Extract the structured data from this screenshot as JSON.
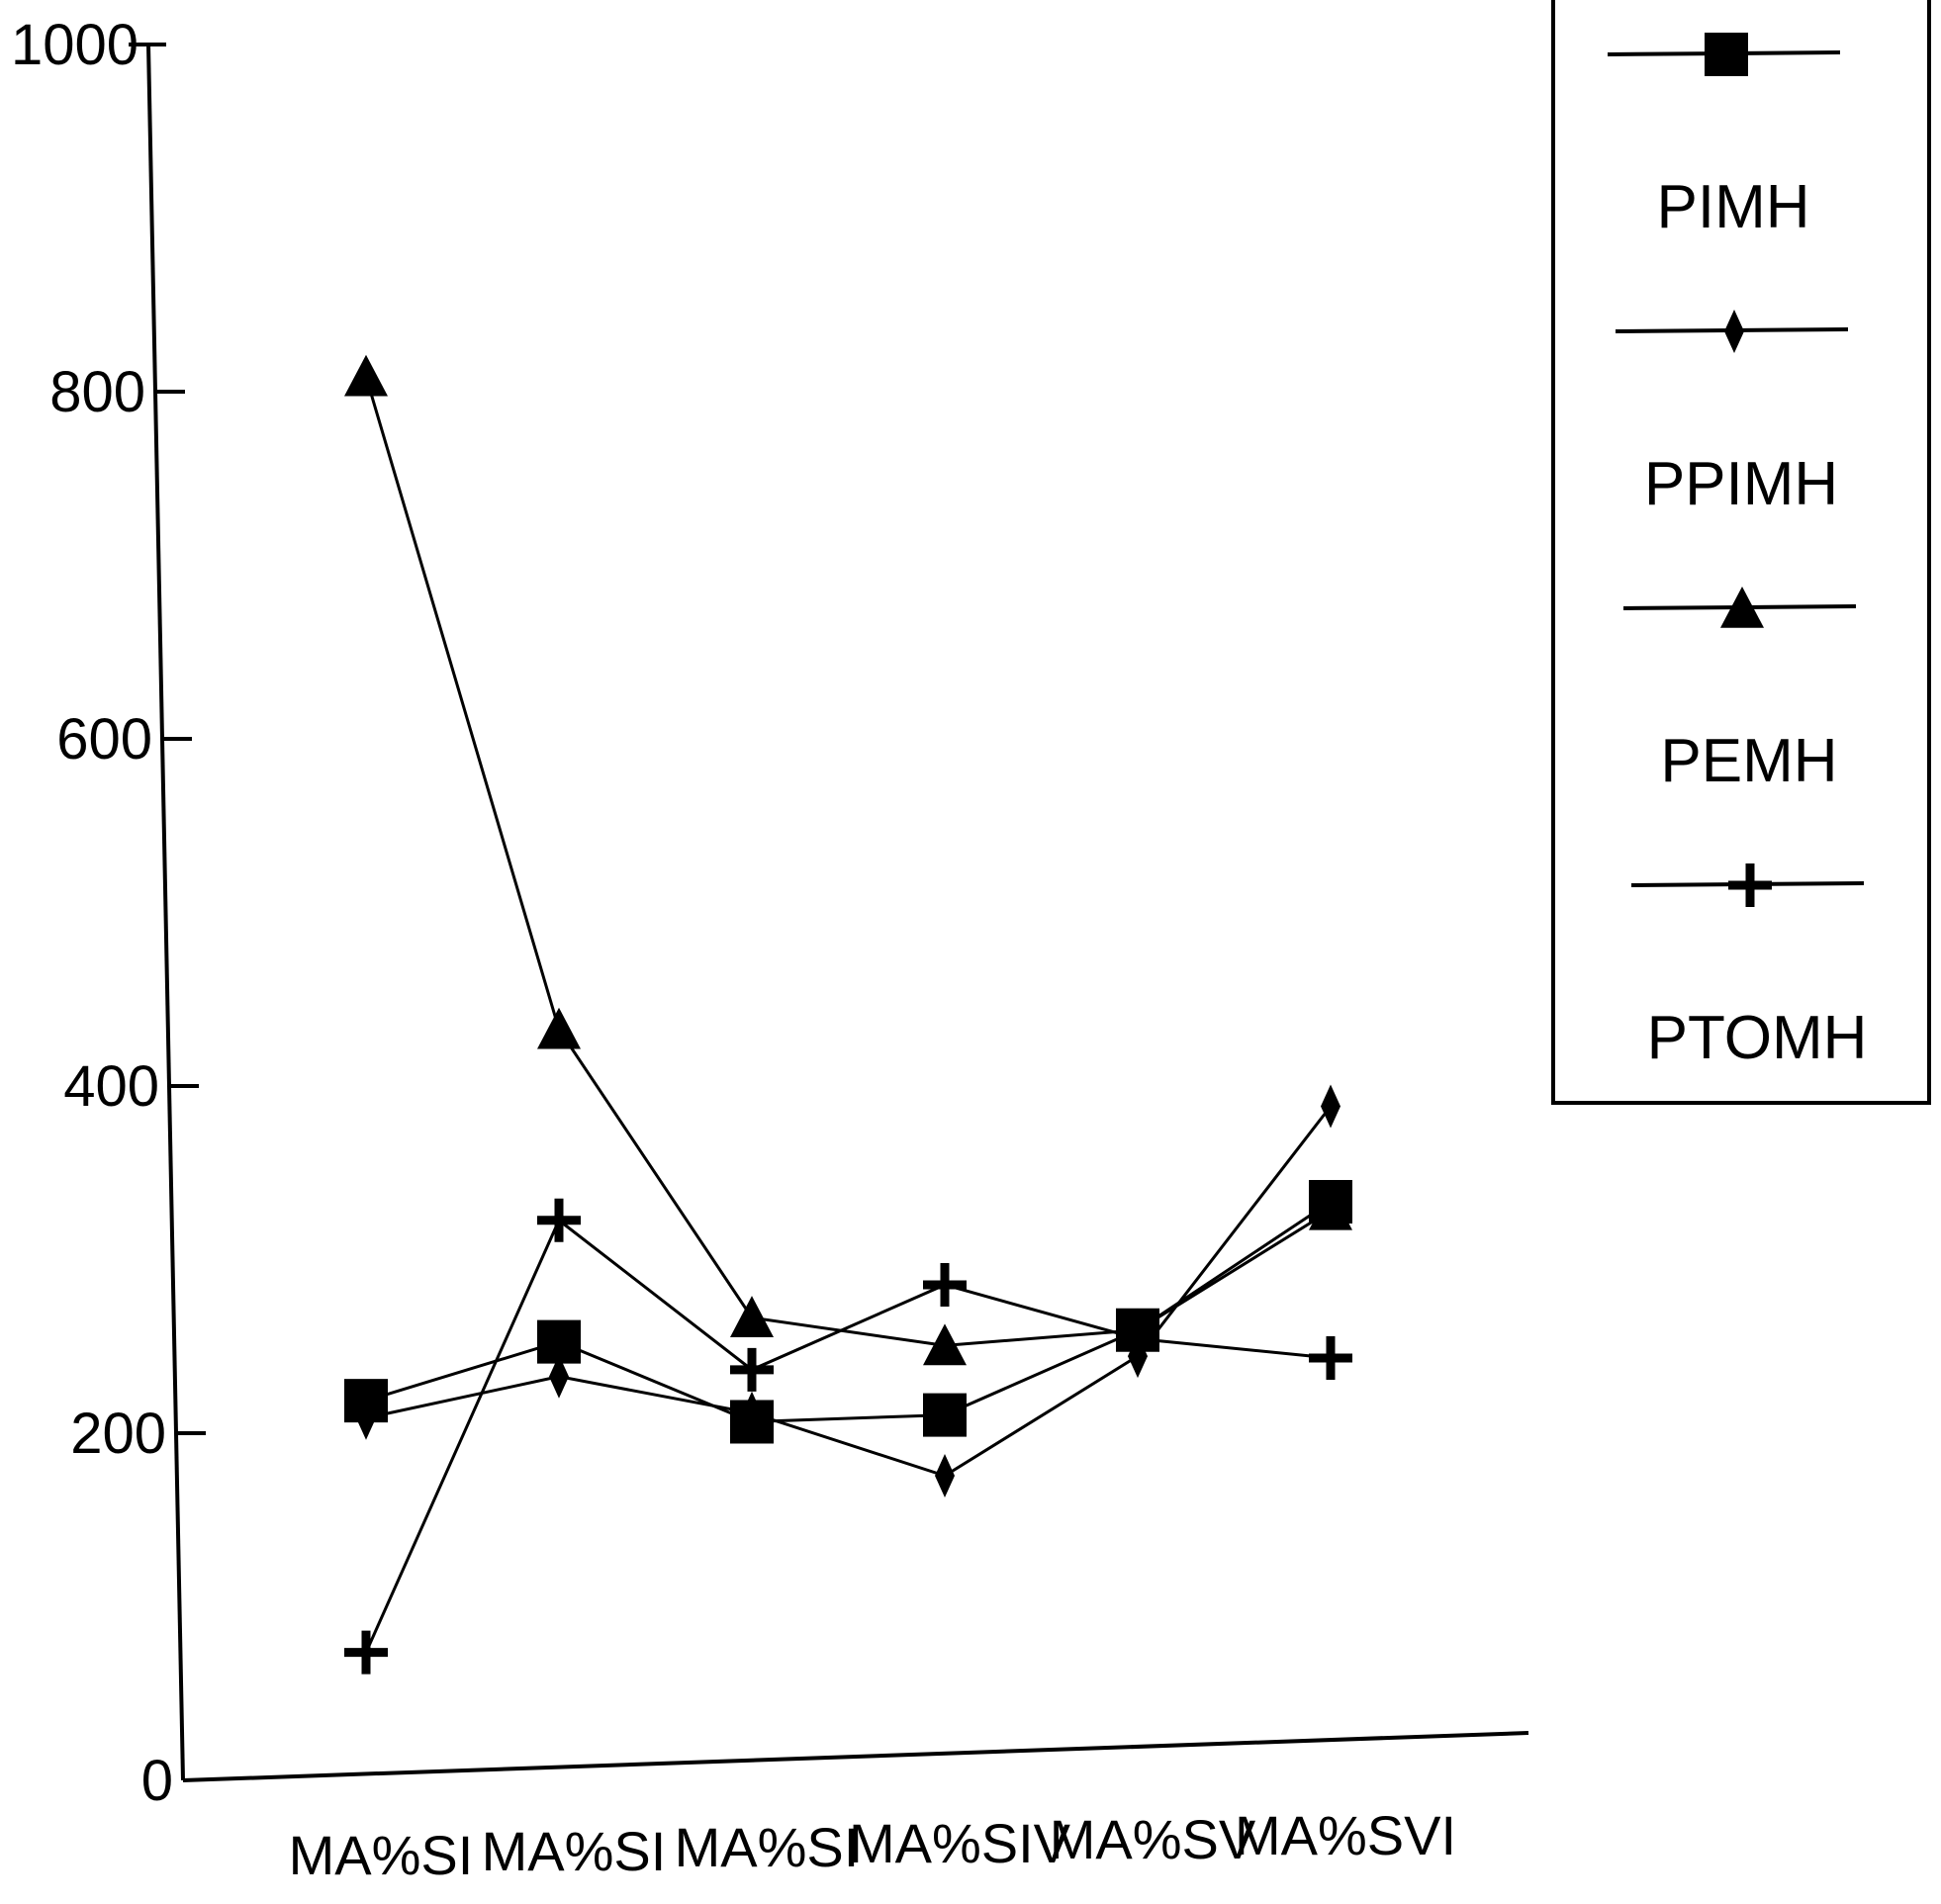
{
  "chart_data": {
    "type": "line",
    "title": "",
    "xlabel": "",
    "ylabel": "",
    "ylim": [
      0,
      1000
    ],
    "yticks": [
      "0",
      "200",
      "400",
      "600",
      "800",
      "1000"
    ],
    "ytick_values": [
      0,
      200,
      400,
      600,
      800,
      1000
    ],
    "categories": [
      "MA%SI",
      "MA%SI",
      "MA%SI",
      "MA%SIV",
      "MA%SV",
      "MA%SVI"
    ],
    "grid": false,
    "legend_position": "top-right",
    "series": [
      {
        "name": "PIMH",
        "marker": "square",
        "values": [
          215,
          245,
          195,
          195,
          240,
          310
        ]
      },
      {
        "name": "PPIMH",
        "marker": "diamond",
        "values": [
          205,
          225,
          200,
          160,
          225,
          365
        ]
      },
      {
        "name": "PEMH",
        "marker": "triangle",
        "values": [
          805,
          425,
          255,
          235,
          240,
          305
        ]
      },
      {
        "name": "PTOMH",
        "marker": "plus",
        "values": [
          70,
          315,
          225,
          270,
          235,
          220
        ]
      }
    ]
  }
}
